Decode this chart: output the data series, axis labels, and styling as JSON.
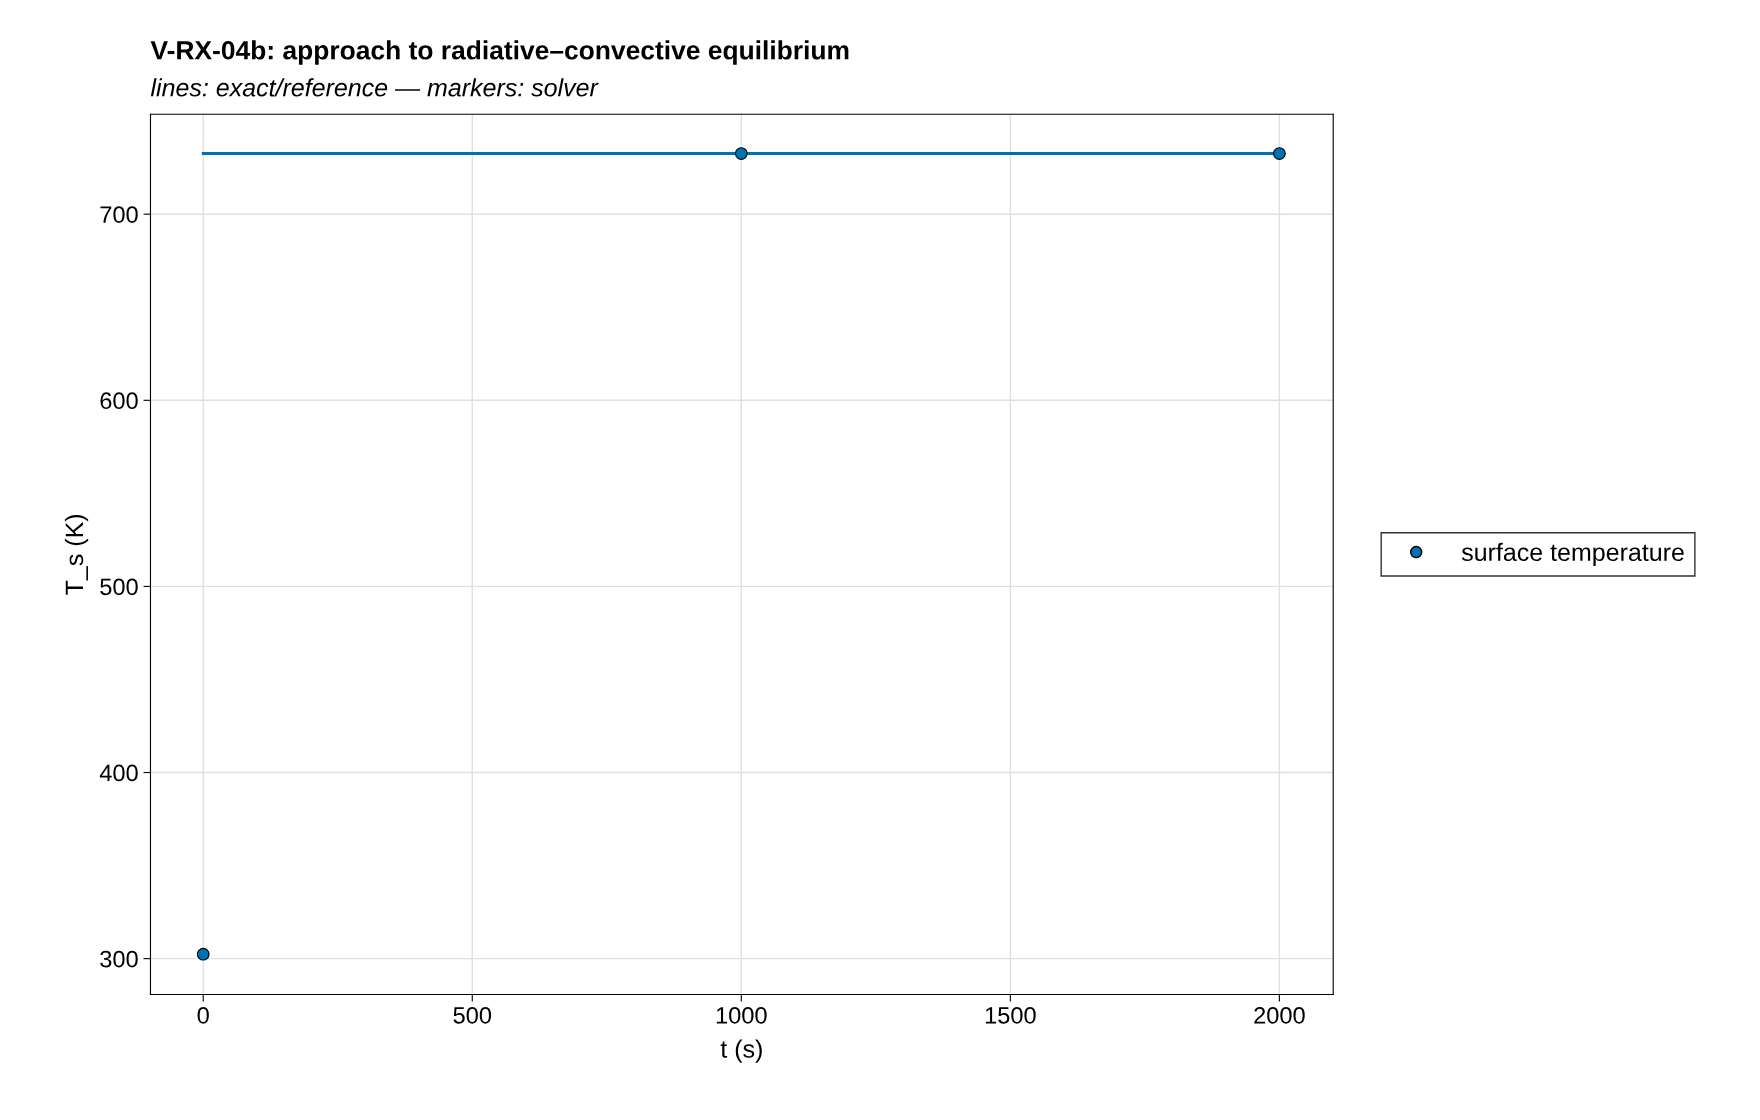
{
  "chart_data": {
    "type": "scatter",
    "title": "V-RX-04b: approach to radiative–convective equilibrium",
    "subtitle": "lines: exact/reference — markers: solver",
    "xlabel": "t (s)",
    "ylabel": "T_s (K)",
    "series": [
      {
        "type": "line",
        "color": "#0072b2",
        "x": [
          0,
          2000
        ],
        "values": [
          732.6,
          732.6
        ],
        "marker": "none"
      },
      {
        "name": "surface temperature",
        "color": "#0072b2",
        "x": [
          0,
          1000,
          2000
        ],
        "values": [
          302.4,
          732.6,
          732.6
        ],
        "marker": "circle"
      }
    ],
    "xlim": [
      -98,
      2100
    ],
    "ylim": [
      280.7,
      753.7
    ],
    "xticks": [
      0,
      500,
      1000,
      1500,
      2000
    ],
    "yticks": [
      300,
      400,
      500,
      600,
      700
    ],
    "grid": true,
    "legend": "right"
  }
}
